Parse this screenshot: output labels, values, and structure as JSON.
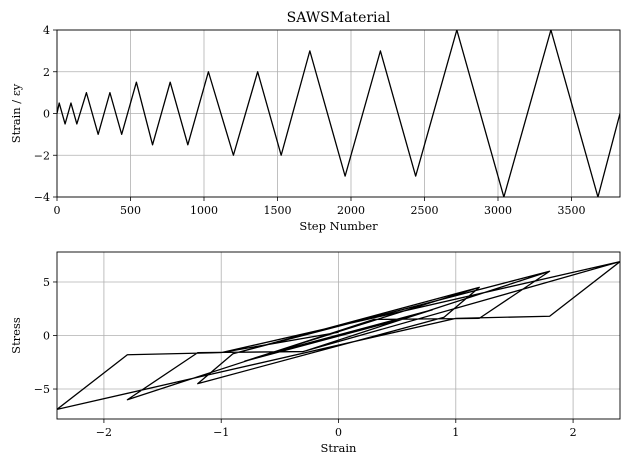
{
  "chart_data": [
    {
      "type": "line",
      "title": "SAWSMaterial",
      "xlabel": "Step Number",
      "ylabel": "Strain / εy",
      "xlim": [
        0,
        3830
      ],
      "ylim": [
        -4,
        4
      ],
      "xticks": [
        0,
        500,
        1000,
        1500,
        2000,
        2500,
        3000,
        3500
      ],
      "yticks": [
        -4,
        -2,
        0,
        2,
        4
      ],
      "xtick_labels": [
        "0",
        "500",
        "1000",
        "1500",
        "2000",
        "2500",
        "3000",
        "3500"
      ],
      "ytick_labels": [
        "−4",
        "−2",
        "0",
        "2",
        "4"
      ],
      "grid": true,
      "series": [
        {
          "x": [
            0,
            15,
            55,
            95,
            135,
            200,
            280,
            360,
            440,
            540,
            650,
            770,
            890,
            1030,
            1200,
            1365,
            1525,
            1720,
            1960,
            2200,
            2440,
            2720,
            3040,
            3360,
            3680,
            3830
          ],
          "y": [
            0,
            0.5,
            -0.5,
            0.5,
            -0.5,
            1,
            -1,
            1,
            -1,
            1.5,
            -1.5,
            1.5,
            -1.5,
            2,
            -2,
            2,
            -2,
            3,
            -3,
            3,
            -3,
            4,
            -4,
            4,
            -4,
            0
          ]
        }
      ]
    },
    {
      "type": "line",
      "title": "",
      "xlabel": "Strain",
      "ylabel": "Stress",
      "xlim": [
        -2.4,
        2.4
      ],
      "ylim": [
        -7.8,
        7.8
      ],
      "xticks": [
        -2,
        -1,
        0,
        1,
        2
      ],
      "yticks": [
        -5,
        0,
        5
      ],
      "xtick_labels": [
        "−2",
        "−1",
        "0",
        "1",
        "2"
      ],
      "ytick_labels": [
        "−5",
        "0",
        "5"
      ],
      "grid": true,
      "series": [
        {
          "x": [
            0,
            0.2,
            -0.2,
            0.2,
            -0.2,
            0.4,
            -0.4,
            0.4,
            -0.4,
            0.6,
            -0.6,
            0.6,
            -0.6,
            0.8,
            0.6,
            -0.8,
            -0.6,
            0.8,
            0.6,
            -0.8,
            -0.6,
            1.2,
            0.9,
            -1.2,
            -0.9,
            1.2,
            0.9,
            -1.2,
            -0.9,
            1.8,
            1.2,
            0.3,
            -1.8,
            -1.2,
            -0.3,
            1.8,
            1.2,
            0.3,
            -1.8,
            -1.2,
            -0.3,
            2.4,
            1.8,
            1.0,
            -2.4,
            -1.8,
            -1.0,
            2.4,
            1.8,
            1.0,
            -2.4,
            -1.8,
            -1.0,
            0
          ],
          "y": [
            0,
            0.6,
            -0.6,
            0.6,
            -0.6,
            1.2,
            -1.2,
            1.2,
            -1.2,
            1.8,
            -1.8,
            1.8,
            -1.8,
            2.4,
            1.7,
            -2.4,
            -1.7,
            2.4,
            1.7,
            -2.4,
            -1.7,
            4.5,
            1.7,
            -4.5,
            -1.7,
            4.5,
            1.7,
            -4.5,
            -1.7,
            6.0,
            1.6,
            1.5,
            -6.0,
            -1.6,
            -1.5,
            6.0,
            1.6,
            1.5,
            -6.0,
            -1.6,
            -1.5,
            6.9,
            1.8,
            1.6,
            -6.9,
            -1.8,
            -1.6,
            6.9,
            1.8,
            1.6,
            -6.9,
            -1.8,
            -1.6,
            0.3
          ]
        }
      ]
    }
  ]
}
